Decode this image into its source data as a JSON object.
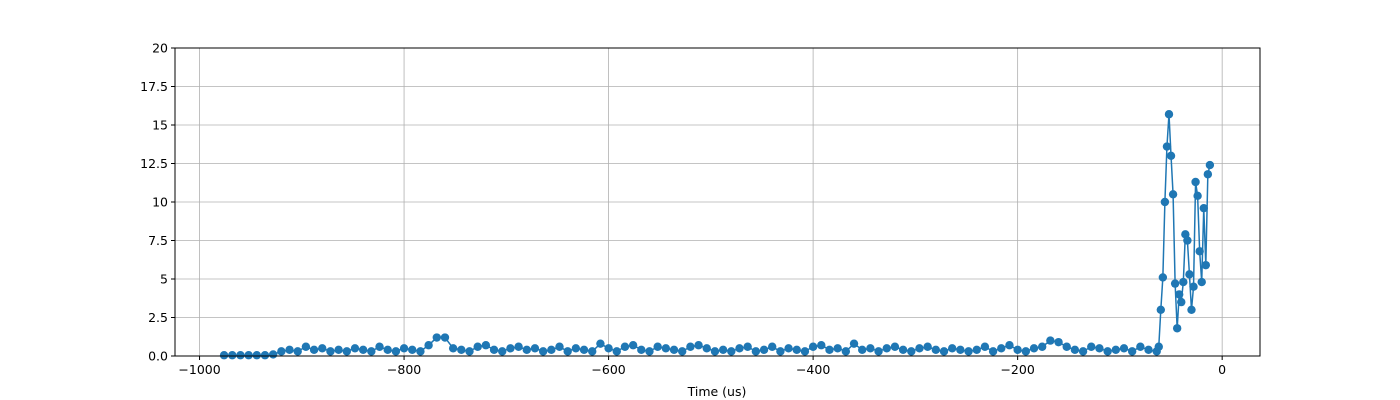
{
  "chart_data": {
    "type": "line",
    "xlabel": "Time (us)",
    "x": [
      -976,
      -968,
      -960,
      -952,
      -944,
      -936,
      -928,
      -920,
      -912,
      -904,
      -896,
      -888,
      -880,
      -872,
      -864,
      -856,
      -848,
      -840,
      -832,
      -824,
      -816,
      -808,
      -800,
      -792,
      -784,
      -776,
      -768,
      -760,
      -752,
      -744,
      -736,
      -728,
      -720,
      -712,
      -704,
      -696,
      -688,
      -680,
      -672,
      -664,
      -656,
      -648,
      -640,
      -632,
      -624,
      -616,
      -608,
      -600,
      -592,
      -584,
      -576,
      -568,
      -560,
      -552,
      -544,
      -536,
      -528,
      -520,
      -512,
      -504,
      -496,
      -488,
      -480,
      -472,
      -464,
      -456,
      -448,
      -440,
      -432,
      -424,
      -416,
      -408,
      -400,
      -392,
      -384,
      -376,
      -368,
      -360,
      -352,
      -344,
      -336,
      -328,
      -320,
      -312,
      -304,
      -296,
      -288,
      -280,
      -272,
      -264,
      -256,
      -248,
      -240,
      -232,
      -224,
      -216,
      -208,
      -200,
      -192,
      -184,
      -176,
      -168,
      -160,
      -152,
      -144,
      -136,
      -128,
      -120,
      -112,
      -104,
      -96,
      -88,
      -80,
      -72,
      -64,
      -62,
      -60,
      -58,
      -56,
      -54,
      -52,
      -50,
      -48,
      -46,
      -44,
      -42,
      -40,
      -38,
      -36,
      -34,
      -32,
      -30,
      -28,
      -26,
      -24,
      -22,
      -20,
      -18,
      -16,
      -14,
      -12
    ],
    "series": [
      {
        "color": "#1f77b4",
        "values": [
          0.05,
          0.05,
          0.05,
          0.05,
          0.05,
          0.05,
          0.1,
          0.3,
          0.4,
          0.3,
          0.6,
          0.4,
          0.5,
          0.3,
          0.4,
          0.3,
          0.5,
          0.4,
          0.3,
          0.6,
          0.4,
          0.3,
          0.5,
          0.4,
          0.3,
          0.7,
          1.2,
          1.2,
          0.5,
          0.4,
          0.3,
          0.6,
          0.7,
          0.4,
          0.3,
          0.5,
          0.6,
          0.4,
          0.5,
          0.3,
          0.4,
          0.6,
          0.3,
          0.5,
          0.4,
          0.3,
          0.8,
          0.5,
          0.3,
          0.6,
          0.7,
          0.4,
          0.3,
          0.6,
          0.5,
          0.4,
          0.3,
          0.6,
          0.7,
          0.5,
          0.3,
          0.4,
          0.3,
          0.5,
          0.6,
          0.3,
          0.4,
          0.6,
          0.3,
          0.5,
          0.4,
          0.3,
          0.6,
          0.7,
          0.4,
          0.5,
          0.3,
          0.8,
          0.4,
          0.5,
          0.3,
          0.5,
          0.6,
          0.4,
          0.3,
          0.5,
          0.6,
          0.4,
          0.3,
          0.5,
          0.4,
          0.3,
          0.4,
          0.6,
          0.3,
          0.5,
          0.7,
          0.4,
          0.3,
          0.5,
          0.6,
          1.0,
          0.9,
          0.6,
          0.4,
          0.3,
          0.6,
          0.5,
          0.3,
          0.4,
          0.5,
          0.3,
          0.6,
          0.4,
          0.3,
          0.6,
          3.0,
          5.1,
          10.0,
          13.6,
          15.7,
          13.0,
          10.5,
          4.7,
          1.8,
          4.0,
          3.5,
          4.8,
          7.9,
          7.5,
          5.3,
          3.0,
          4.5,
          11.3,
          10.4,
          6.8,
          4.8,
          9.6,
          5.9,
          11.8,
          12.4
        ]
      }
    ],
    "xlim": [
      -1024,
      37
    ],
    "xticks": [
      {
        "value": -1000,
        "label": "−1000"
      },
      {
        "value": -800,
        "label": "−800"
      },
      {
        "value": -600,
        "label": "−600"
      },
      {
        "value": -400,
        "label": "−400"
      },
      {
        "value": -200,
        "label": "−200"
      },
      0
    ],
    "ylim": [
      0,
      20
    ],
    "yticks": [
      {
        "value": 0,
        "label": "0.0"
      },
      2.5,
      5,
      7.5,
      10,
      12.5,
      15,
      17.5,
      20
    ],
    "grid": true
  }
}
